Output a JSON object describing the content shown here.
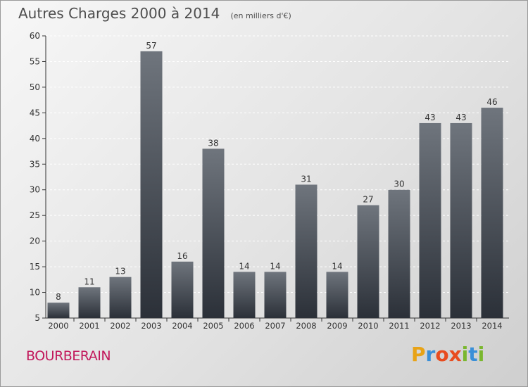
{
  "header": {
    "title": "Autres Charges 2000 à 2014",
    "subtitle": "(en milliers d'€)"
  },
  "footer": {
    "commune": "BOURBERAIN",
    "brand_letters": [
      "P",
      "r",
      "o",
      "x",
      "i",
      "t",
      "i"
    ],
    "brand_colors": [
      "#e8a317",
      "#3a8fd8",
      "#e84c1f",
      "#e84c1f",
      "#7ab72e",
      "#3a8fd8",
      "#7ab72e"
    ]
  },
  "colors": {
    "bar_top": "#6f757d",
    "bar_bottom": "#2b3038",
    "axis": "#333333",
    "grid": "#ffffff",
    "commune": "#c2185b"
  },
  "chart_data": {
    "type": "bar",
    "title": "Autres Charges 2000 à 2014",
    "subtitle": "(en milliers d'€)",
    "categories": [
      "2000",
      "2001",
      "2002",
      "2003",
      "2004",
      "2005",
      "2006",
      "2007",
      "2008",
      "2009",
      "2010",
      "2011",
      "2012",
      "2013",
      "2014"
    ],
    "values": [
      8,
      11,
      13,
      57,
      16,
      38,
      14,
      14,
      31,
      14,
      27,
      30,
      43,
      43,
      46
    ],
    "ylim": [
      5,
      60
    ],
    "yticks": [
      5,
      10,
      15,
      20,
      25,
      30,
      35,
      40,
      45,
      50,
      55,
      60
    ],
    "grid": true,
    "data_labels": true
  }
}
